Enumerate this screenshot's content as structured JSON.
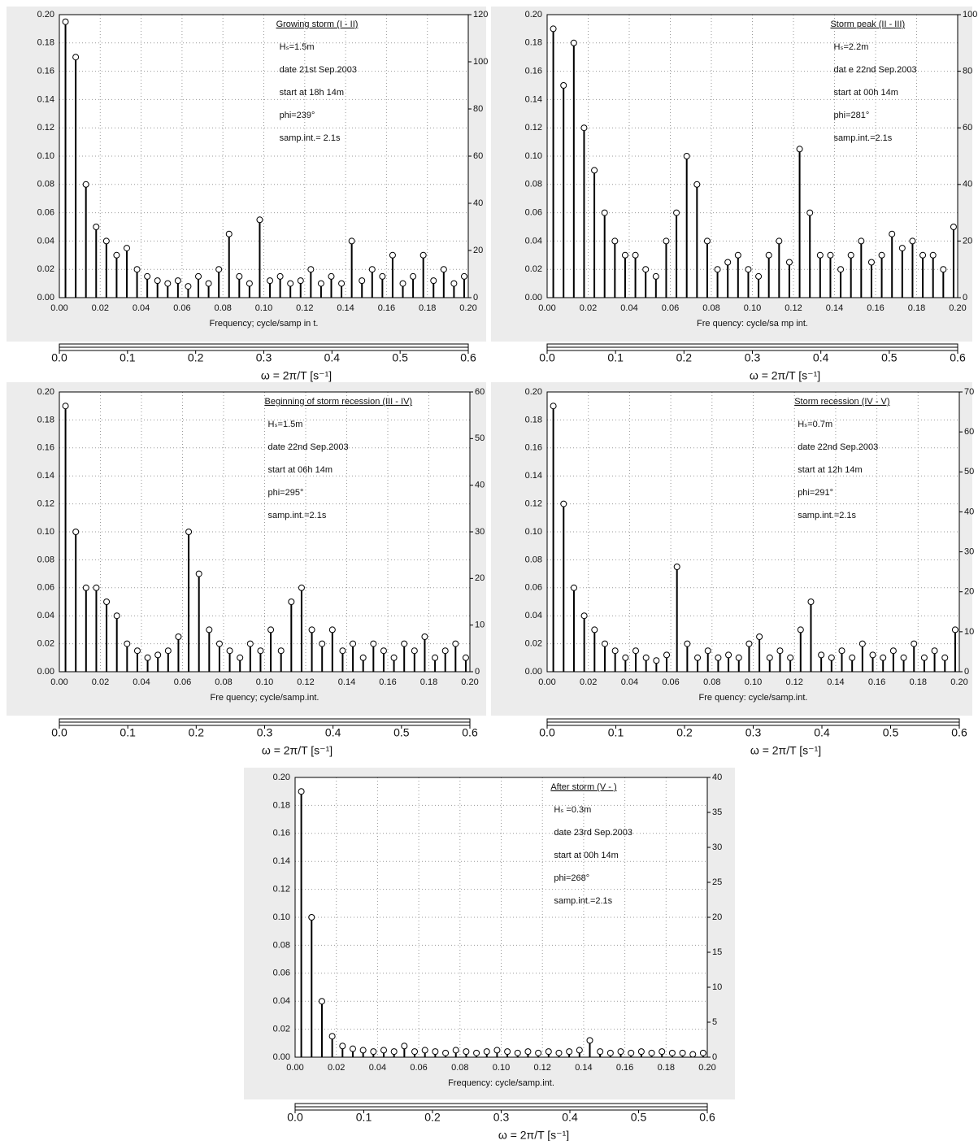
{
  "chart_data": [
    {
      "type": "stem",
      "title": "Growing storm (I - II)",
      "annotations": [
        "Hₛ=1.5m",
        "date 21st Sep.2003",
        "start at 18h 14m",
        "phi=239°",
        "samp.int.= 2.1s"
      ],
      "x_label": "Frequency; cycle/samp in t.",
      "x2_label": "ω = 2π/T [s⁻¹]",
      "color": "#000000",
      "grid": true,
      "x": [
        0.003,
        0.008,
        0.013,
        0.018,
        0.023,
        0.028,
        0.033,
        0.038,
        0.043,
        0.048,
        0.053,
        0.058,
        0.063,
        0.068,
        0.073,
        0.078,
        0.083,
        0.088,
        0.093,
        0.098,
        0.103,
        0.108,
        0.113,
        0.118,
        0.123,
        0.128,
        0.133,
        0.138,
        0.143,
        0.148,
        0.153,
        0.158,
        0.163,
        0.168,
        0.173,
        0.178,
        0.183,
        0.188,
        0.193,
        0.198
      ],
      "values": [
        0.195,
        0.17,
        0.08,
        0.05,
        0.04,
        0.03,
        0.035,
        0.02,
        0.015,
        0.012,
        0.01,
        0.012,
        0.008,
        0.015,
        0.01,
        0.02,
        0.045,
        0.015,
        0.01,
        0.055,
        0.012,
        0.015,
        0.01,
        0.012,
        0.02,
        0.01,
        0.015,
        0.01,
        0.04,
        0.012,
        0.02,
        0.015,
        0.03,
        0.01,
        0.015,
        0.03,
        0.012,
        0.02,
        0.01,
        0.015
      ],
      "xlim": [
        0,
        0.2
      ],
      "xticks": [
        {
          "value": 0,
          "label": "0.00"
        },
        0.02,
        0.04,
        0.06,
        0.08,
        {
          "value": 0.1,
          "label": "0.10"
        },
        0.12,
        0.14,
        0.16,
        0.18,
        {
          "value": 0.2,
          "label": "0.20"
        }
      ],
      "ylim": [
        0,
        0.2
      ],
      "yticks": [
        {
          "value": 0,
          "label": "0.00"
        },
        0.02,
        0.04,
        0.06,
        0.08,
        {
          "value": 0.1,
          "label": "0.10"
        },
        0.12,
        0.14,
        0.16,
        0.18,
        {
          "value": 0.2,
          "label": "0.20"
        }
      ],
      "y2lim": [
        0,
        120
      ],
      "y2ticks": [
        0,
        20,
        40,
        60,
        80,
        100,
        120
      ],
      "x2lim": [
        0,
        0.6
      ],
      "x2ticks": [
        {
          "value": 0,
          "label": "0.0"
        },
        0.1,
        0.2,
        0.3,
        0.4,
        0.5,
        0.6
      ]
    },
    {
      "type": "stem",
      "title": "Storm peak (II - III)",
      "annotations": [
        "Hₛ=2.2m",
        "dat e 22nd Sep.2003",
        "start at 00h 14m",
        "phi=281°",
        "samp.int.=2.1s"
      ],
      "x_label": "Fre quency: cycle/sa mp int.",
      "x2_label": "ω = 2π/T [s⁻¹]",
      "color": "#000000",
      "grid": true,
      "x": [
        0.003,
        0.008,
        0.013,
        0.018,
        0.023,
        0.028,
        0.033,
        0.038,
        0.043,
        0.048,
        0.053,
        0.058,
        0.063,
        0.068,
        0.073,
        0.078,
        0.083,
        0.088,
        0.093,
        0.098,
        0.103,
        0.108,
        0.113,
        0.118,
        0.123,
        0.128,
        0.133,
        0.138,
        0.143,
        0.148,
        0.153,
        0.158,
        0.163,
        0.168,
        0.173,
        0.178,
        0.183,
        0.188,
        0.193,
        0.198
      ],
      "values": [
        0.19,
        0.15,
        0.18,
        0.12,
        0.09,
        0.06,
        0.04,
        0.03,
        0.03,
        0.02,
        0.015,
        0.04,
        0.06,
        0.1,
        0.08,
        0.04,
        0.02,
        0.025,
        0.03,
        0.02,
        0.015,
        0.03,
        0.04,
        0.025,
        0.105,
        0.06,
        0.03,
        0.03,
        0.02,
        0.03,
        0.04,
        0.025,
        0.03,
        0.045,
        0.035,
        0.04,
        0.03,
        0.03,
        0.02,
        0.05
      ],
      "xlim": [
        0,
        0.2
      ],
      "xticks": [
        {
          "value": 0,
          "label": "0.00"
        },
        0.02,
        0.04,
        0.06,
        0.08,
        {
          "value": 0.1,
          "label": "0.10"
        },
        0.12,
        0.14,
        0.16,
        0.18,
        {
          "value": 0.2,
          "label": "0.20"
        }
      ],
      "ylim": [
        0,
        0.2
      ],
      "yticks": [
        {
          "value": 0,
          "label": "0.00"
        },
        0.02,
        0.04,
        0.06,
        0.08,
        {
          "value": 0.1,
          "label": "0.10"
        },
        0.12,
        0.14,
        0.16,
        0.18,
        {
          "value": 0.2,
          "label": "0.20"
        }
      ],
      "y2lim": [
        0,
        100
      ],
      "y2ticks": [
        0,
        20,
        40,
        60,
        80,
        100
      ],
      "x2lim": [
        0,
        0.6
      ],
      "x2ticks": [
        {
          "value": 0,
          "label": "0.0"
        },
        0.1,
        0.2,
        0.3,
        0.4,
        0.5,
        0.6
      ]
    },
    {
      "type": "stem",
      "title": "Beginning of storm recession (III - IV)",
      "annotations": [
        "Hₛ=1.5m",
        "date 22nd Sep.2003",
        "start at 06h 14m",
        "phi=295°",
        "samp.int.=2.1s"
      ],
      "x_label": "Fre quency; cycle/samp.int.",
      "x2_label": "ω = 2π/T [s⁻¹]",
      "color": "#000000",
      "grid": true,
      "x": [
        0.003,
        0.008,
        0.013,
        0.018,
        0.023,
        0.028,
        0.033,
        0.038,
        0.043,
        0.048,
        0.053,
        0.058,
        0.063,
        0.068,
        0.073,
        0.078,
        0.083,
        0.088,
        0.093,
        0.098,
        0.103,
        0.108,
        0.113,
        0.118,
        0.123,
        0.128,
        0.133,
        0.138,
        0.143,
        0.148,
        0.153,
        0.158,
        0.163,
        0.168,
        0.173,
        0.178,
        0.183,
        0.188,
        0.193,
        0.198
      ],
      "values": [
        0.19,
        0.1,
        0.06,
        0.06,
        0.05,
        0.04,
        0.02,
        0.015,
        0.01,
        0.012,
        0.015,
        0.025,
        0.1,
        0.07,
        0.03,
        0.02,
        0.015,
        0.01,
        0.02,
        0.015,
        0.03,
        0.015,
        0.05,
        0.06,
        0.03,
        0.02,
        0.03,
        0.015,
        0.02,
        0.01,
        0.02,
        0.015,
        0.01,
        0.02,
        0.015,
        0.025,
        0.01,
        0.015,
        0.02,
        0.01
      ],
      "xlim": [
        0,
        0.2
      ],
      "xticks": [
        {
          "value": 0,
          "label": "0.00"
        },
        0.02,
        0.04,
        0.06,
        0.08,
        {
          "value": 0.1,
          "label": "0.10"
        },
        0.12,
        0.14,
        0.16,
        0.18,
        {
          "value": 0.2,
          "label": "0.20"
        }
      ],
      "ylim": [
        0,
        0.2
      ],
      "yticks": [
        {
          "value": 0,
          "label": "0.00"
        },
        0.02,
        0.04,
        0.06,
        0.08,
        {
          "value": 0.1,
          "label": "0.10"
        },
        0.12,
        0.14,
        0.16,
        0.18,
        {
          "value": 0.2,
          "label": "0.20"
        }
      ],
      "y2lim": [
        0,
        60
      ],
      "y2ticks": [
        0,
        10,
        20,
        30,
        40,
        50,
        60
      ],
      "x2lim": [
        0,
        0.6
      ],
      "x2ticks": [
        {
          "value": 0,
          "label": "0.0"
        },
        0.1,
        0.2,
        0.3,
        0.4,
        0.5,
        0.6
      ]
    },
    {
      "type": "stem",
      "title": "Storm recession (IV - V)",
      "annotations": [
        "Hₛ=0.7m",
        "date 22nd Sep.2003",
        "start at 12h 14m",
        "phi=291°",
        "samp.int.=2.1s"
      ],
      "x_label": "Fre quency: cycle/samp.int.",
      "x2_label": "ω = 2π/T [s⁻¹]",
      "color": "#000000",
      "grid": true,
      "x": [
        0.003,
        0.008,
        0.013,
        0.018,
        0.023,
        0.028,
        0.033,
        0.038,
        0.043,
        0.048,
        0.053,
        0.058,
        0.063,
        0.068,
        0.073,
        0.078,
        0.083,
        0.088,
        0.093,
        0.098,
        0.103,
        0.108,
        0.113,
        0.118,
        0.123,
        0.128,
        0.133,
        0.138,
        0.143,
        0.148,
        0.153,
        0.158,
        0.163,
        0.168,
        0.173,
        0.178,
        0.183,
        0.188,
        0.193,
        0.198
      ],
      "values": [
        0.19,
        0.12,
        0.06,
        0.04,
        0.03,
        0.02,
        0.015,
        0.01,
        0.015,
        0.01,
        0.008,
        0.012,
        0.075,
        0.02,
        0.01,
        0.015,
        0.01,
        0.012,
        0.01,
        0.02,
        0.025,
        0.01,
        0.015,
        0.01,
        0.03,
        0.05,
        0.012,
        0.01,
        0.015,
        0.01,
        0.02,
        0.012,
        0.01,
        0.015,
        0.01,
        0.02,
        0.01,
        0.015,
        0.01,
        0.03
      ],
      "xlim": [
        0,
        0.2
      ],
      "xticks": [
        {
          "value": 0,
          "label": "0.00"
        },
        0.02,
        0.04,
        0.06,
        0.08,
        {
          "value": 0.1,
          "label": "0.10"
        },
        0.12,
        0.14,
        0.16,
        0.18,
        {
          "value": 0.2,
          "label": "0.20"
        }
      ],
      "ylim": [
        0,
        0.2
      ],
      "yticks": [
        {
          "value": 0,
          "label": "0.00"
        },
        0.02,
        0.04,
        0.06,
        0.08,
        {
          "value": 0.1,
          "label": "0.10"
        },
        0.12,
        0.14,
        0.16,
        0.18,
        {
          "value": 0.2,
          "label": "0.20"
        }
      ],
      "y2lim": [
        0,
        70
      ],
      "y2ticks": [
        0,
        10,
        20,
        30,
        40,
        50,
        60,
        70
      ],
      "x2lim": [
        0,
        0.6
      ],
      "x2ticks": [
        {
          "value": 0,
          "label": "0.0"
        },
        0.1,
        0.2,
        0.3,
        0.4,
        0.5,
        0.6
      ]
    },
    {
      "type": "stem",
      "title": "After storm (V - )",
      "annotations": [
        "Hₛ =0.3m",
        "date 23rd Sep.2003",
        "start at 00h 14m",
        "phi=268°",
        "samp.int.=2.1s"
      ],
      "x_label": "Frequency: cycle/samp.int.",
      "x2_label": "ω = 2π/T [s⁻¹]",
      "color": "#000000",
      "grid": true,
      "x": [
        0.003,
        0.008,
        0.013,
        0.018,
        0.023,
        0.028,
        0.033,
        0.038,
        0.043,
        0.048,
        0.053,
        0.058,
        0.063,
        0.068,
        0.073,
        0.078,
        0.083,
        0.088,
        0.093,
        0.098,
        0.103,
        0.108,
        0.113,
        0.118,
        0.123,
        0.128,
        0.133,
        0.138,
        0.143,
        0.148,
        0.153,
        0.158,
        0.163,
        0.168,
        0.173,
        0.178,
        0.183,
        0.188,
        0.193,
        0.198
      ],
      "values": [
        0.19,
        0.1,
        0.04,
        0.015,
        0.008,
        0.006,
        0.005,
        0.004,
        0.005,
        0.004,
        0.008,
        0.004,
        0.005,
        0.004,
        0.003,
        0.005,
        0.004,
        0.003,
        0.004,
        0.005,
        0.004,
        0.003,
        0.004,
        0.003,
        0.004,
        0.003,
        0.004,
        0.005,
        0.012,
        0.004,
        0.003,
        0.004,
        0.003,
        0.004,
        0.003,
        0.004,
        0.003,
        0.003,
        0.002,
        0.003
      ],
      "xlim": [
        0,
        0.2
      ],
      "xticks": [
        {
          "value": 0,
          "label": "0.00"
        },
        0.02,
        0.04,
        0.06,
        0.08,
        {
          "value": 0.1,
          "label": "0.10"
        },
        0.12,
        0.14,
        0.16,
        0.18,
        {
          "value": 0.2,
          "label": "0.20"
        }
      ],
      "ylim": [
        0,
        0.2
      ],
      "yticks": [
        {
          "value": 0,
          "label": "0.00"
        },
        0.02,
        0.04,
        0.06,
        0.08,
        {
          "value": 0.1,
          "label": "0.10"
        },
        0.12,
        0.14,
        0.16,
        0.18,
        {
          "value": 0.2,
          "label": "0.20"
        }
      ],
      "y2lim": [
        0,
        40
      ],
      "y2ticks": [
        0,
        5,
        10,
        15,
        20,
        25,
        30,
        35,
        40
      ],
      "x2lim": [
        0,
        0.6
      ],
      "x2ticks": [
        {
          "value": 0,
          "label": "0.0"
        },
        0.1,
        0.2,
        0.3,
        0.4,
        0.5,
        0.6
      ]
    }
  ]
}
